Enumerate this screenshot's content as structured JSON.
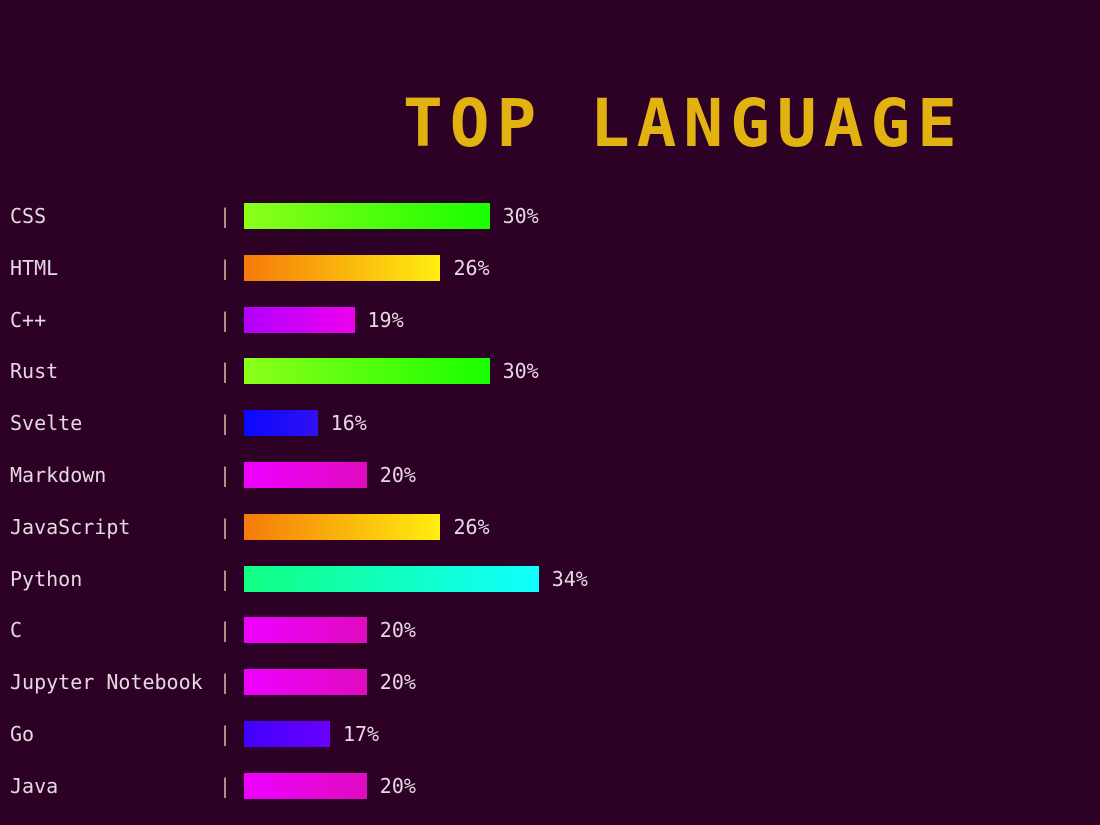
{
  "chart_data": {
    "type": "bar",
    "orientation": "horizontal",
    "title": "TOP LANGUAGE",
    "title_color": "#e2b210",
    "background": "#2d0026",
    "separator": "|",
    "xlim": [
      10,
      34
    ],
    "categories": [
      "CSS",
      "HTML",
      "C++",
      "Rust",
      "Svelte",
      "Markdown",
      "JavaScript",
      "Python",
      "C",
      "Jupyter Notebook",
      "Go",
      "Java"
    ],
    "values": [
      30,
      26,
      19,
      30,
      16,
      20,
      26,
      34,
      20,
      20,
      17,
      20
    ],
    "value_labels": [
      "30%",
      "26%",
      "19%",
      "30%",
      "16%",
      "20%",
      "26%",
      "34%",
      "20%",
      "20%",
      "17%",
      "20%"
    ],
    "gradients": [
      [
        "#8cff1a",
        "#1aff00"
      ],
      [
        "#f57a0a",
        "#ffee10"
      ],
      [
        "#b000ff",
        "#ee00f0"
      ],
      [
        "#8cff1a",
        "#1aff00"
      ],
      [
        "#0a08ff",
        "#3010f0"
      ],
      [
        "#ee00ff",
        "#e00cc0"
      ],
      [
        "#f57a0a",
        "#ffee10"
      ],
      [
        "#10ff80",
        "#10ffff"
      ],
      [
        "#ee00ff",
        "#e00cc0"
      ],
      [
        "#ee00ff",
        "#e00cc0"
      ],
      [
        "#4000ff",
        "#6a00ff"
      ],
      [
        "#ee00ff",
        "#e00cc0"
      ]
    ]
  }
}
